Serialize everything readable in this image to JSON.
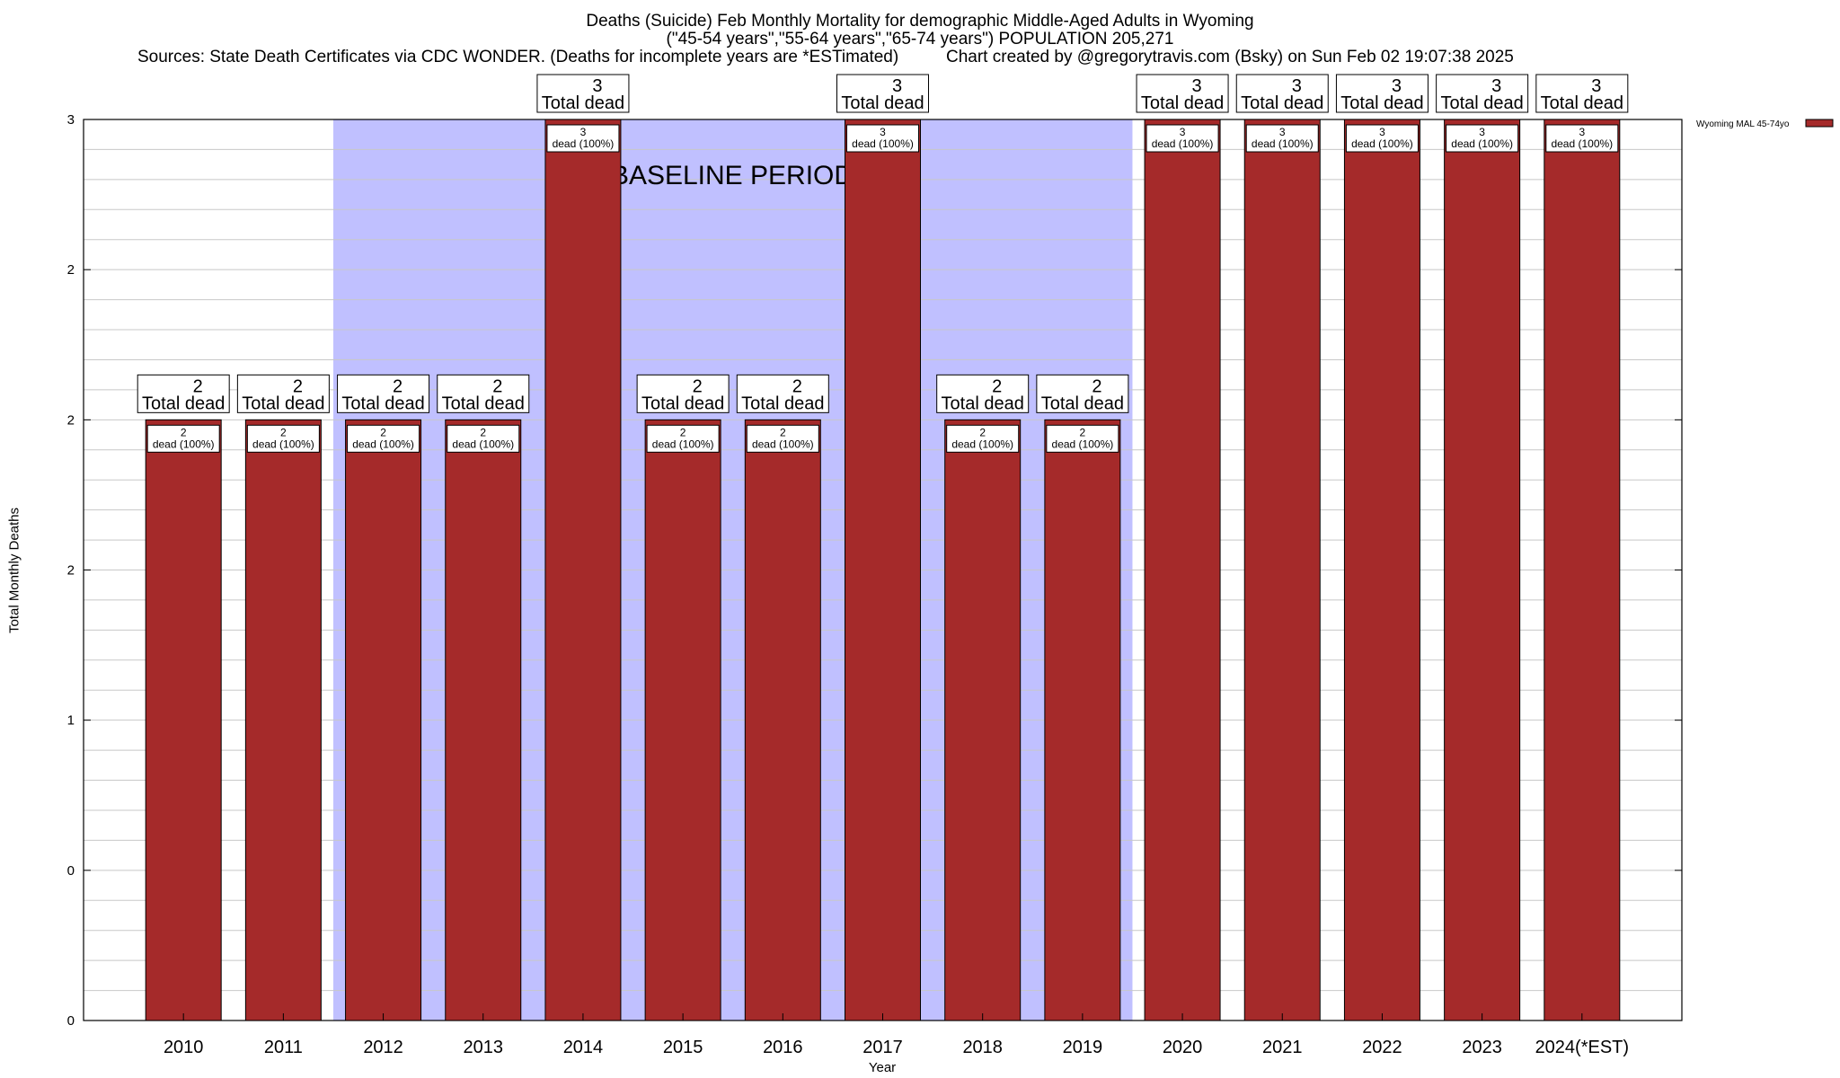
{
  "title": {
    "line1": "Deaths (Suicide) Feb Monthly Mortality for demographic Middle-Aged Adults in Wyoming",
    "line2": "(\"45-54 years\",\"55-64 years\",\"65-74 years\") POPULATION 205,271",
    "line3_left": "Sources: State Death Certificates via CDC WONDER. (Deaths for incomplete years are *ESTimated)",
    "line3_right": "Chart created by @gregorytravis.com (Bsky) on Sun Feb 02 19:07:38 2025"
  },
  "colors": {
    "bar": "#a52a2a",
    "baseline_shade": "#c0c0ff",
    "grid": "#c8c8c8"
  },
  "chart_data": {
    "type": "bar",
    "title": "Deaths (Suicide) Feb Monthly Mortality for demographic Middle-Aged Adults in Wyoming",
    "xlabel": "Year",
    "ylabel": "Total Monthly Deaths",
    "ylim": [
      0,
      3
    ],
    "y_tick_values": [
      0,
      0.5,
      1,
      1.5,
      2,
      2.5,
      3
    ],
    "y_tick_labels": [
      "0",
      "0",
      "1",
      "2",
      "2",
      "2",
      "3"
    ],
    "grid": true,
    "legend": {
      "position": "top-right",
      "label": "Wyoming MAL 45-74yo"
    },
    "categories": [
      "2010",
      "2011",
      "2012",
      "2013",
      "2014",
      "2015",
      "2016",
      "2017",
      "2018",
      "2019",
      "2020",
      "2021",
      "2022",
      "2023",
      "2024(*EST)"
    ],
    "series": [
      {
        "name": "Wyoming MAL 45-74yo",
        "values": [
          2,
          2,
          2,
          2,
          3,
          2,
          2,
          3,
          2,
          2,
          3,
          3,
          3,
          3,
          3
        ]
      }
    ],
    "total_label_suffix": "Total dead",
    "inner_label_suffix": "dead (100%)",
    "baseline_period": {
      "label": "BASELINE PERIOD",
      "from": "2012",
      "to": "2019"
    }
  }
}
